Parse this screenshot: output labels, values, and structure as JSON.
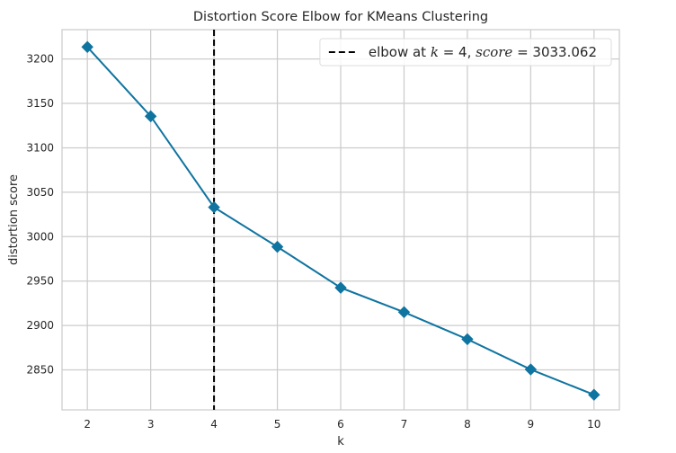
{
  "chart_data": {
    "type": "line",
    "title": "Distortion Score Elbow for KMeans Clustering",
    "xlabel": "k",
    "ylabel": "distortion score",
    "x": [
      2,
      3,
      4,
      5,
      6,
      7,
      8,
      9,
      10
    ],
    "series": [
      {
        "values": [
          3213.5,
          3135.5,
          3033.062,
          2988.5,
          2942.5,
          2915,
          2884.5,
          2850.5,
          2822
        ]
      }
    ],
    "xlim": [
      1.6,
      10.4
    ],
    "ylim": [
      2805,
      3233
    ],
    "xticks": [
      "2",
      "3",
      "4",
      "5",
      "6",
      "7",
      "8",
      "9",
      "10"
    ],
    "yticks": [
      "2850",
      "2900",
      "2950",
      "3000",
      "3050",
      "3100",
      "3150",
      "3200"
    ],
    "elbow": {
      "k": 4,
      "score": 3033.062,
      "legend_parts": {
        "prefix": "elbow at ",
        "k_symbol": "k",
        "k_eq": " = 4, ",
        "score_symbol": "score",
        "score_eq": " = 3033.062"
      }
    },
    "legend_position": "top-right",
    "grid": true,
    "colors": {
      "line": "#0f74a0",
      "marker": "#0f74a0",
      "elbow": "#000000",
      "grid": "#cccccc",
      "spine": "#cccccc"
    }
  }
}
